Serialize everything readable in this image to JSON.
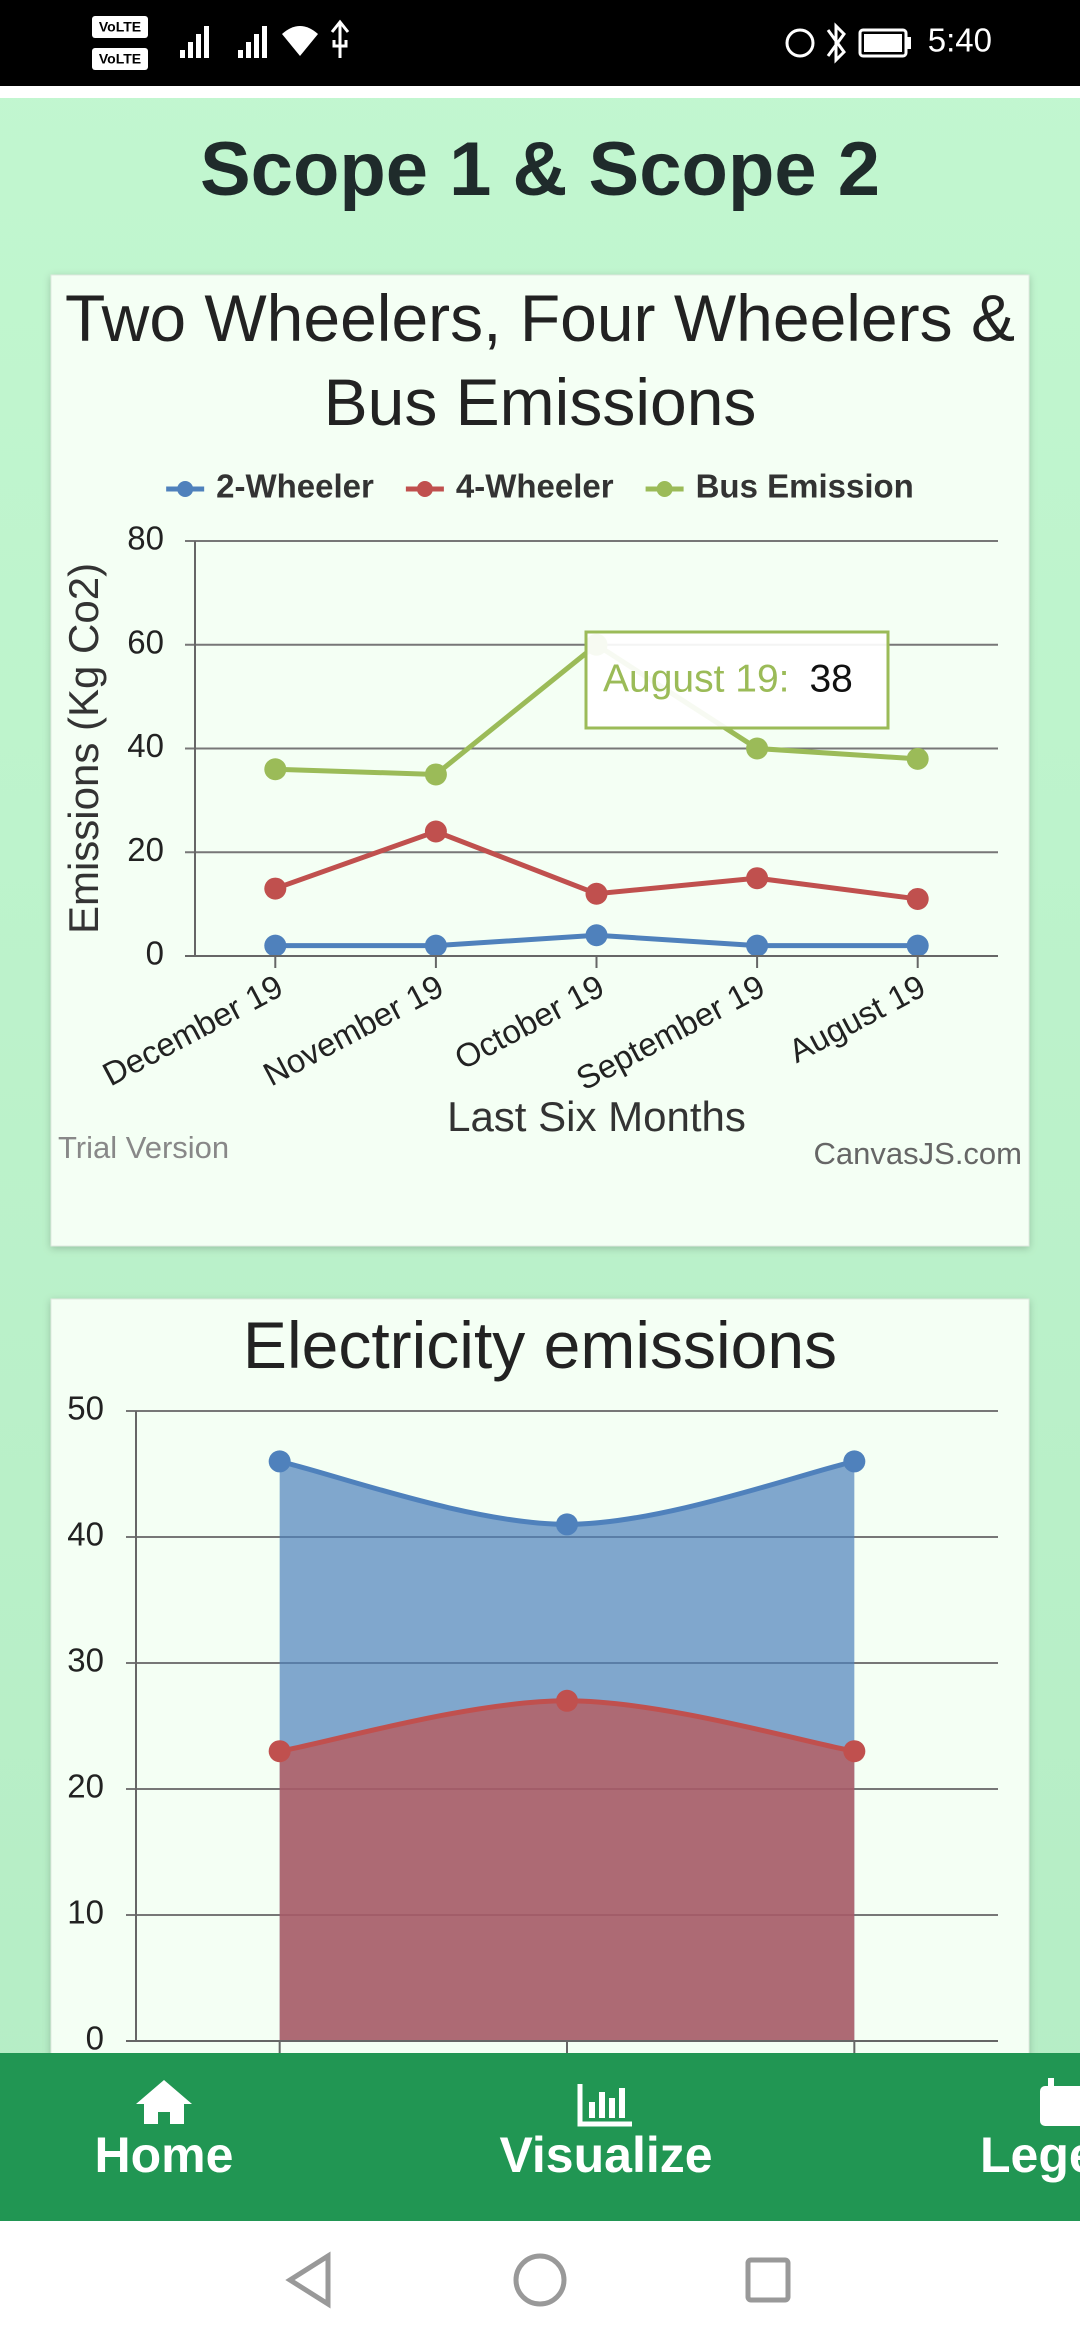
{
  "status_bar": {
    "network_labels": [
      "VoLTE",
      "VoLTE"
    ],
    "time": "5:40"
  },
  "page_title": "Scope 1 & Scope 2",
  "chart_data": [
    {
      "type": "line",
      "title": "Two Wheelers, Four Wheelers & Bus Emissions",
      "categories": [
        "December 19",
        "November 19",
        "October 19",
        "September 19",
        "August 19"
      ],
      "series": [
        {
          "name": "2-Wheeler",
          "color": "#4f81bc",
          "values": [
            2,
            2,
            4,
            2,
            2
          ]
        },
        {
          "name": "4-Wheeler",
          "color": "#c0504e",
          "values": [
            13,
            24,
            12,
            15,
            11
          ]
        },
        {
          "name": "Bus Emission",
          "color": "#9bbb58",
          "values": [
            36,
            35,
            60,
            40,
            38
          ]
        }
      ],
      "x_label": "Last Six Months",
      "y_label": "Emissions (Kg Co2)",
      "ylim": [
        0,
        80
      ],
      "yticks": [
        0,
        20,
        40,
        60,
        80
      ],
      "grid": true,
      "legend": "top",
      "tooltip": {
        "label": "August 19:",
        "value": 38,
        "color": "#9bbb58"
      },
      "watermark": "Trial Version",
      "credit": "CanvasJS.com"
    },
    {
      "type": "area",
      "title": "Electricity emissions",
      "categories": [
        null,
        null,
        null
      ],
      "series": [
        {
          "color": "#4f81bc",
          "values": [
            46,
            41,
            46
          ]
        },
        {
          "color": "#c0504e",
          "values": [
            23,
            27,
            23
          ]
        }
      ],
      "ylim": [
        0,
        50
      ],
      "yticks": [
        0,
        10,
        20,
        30,
        40,
        50
      ],
      "grid": true
    }
  ],
  "nav": {
    "items": [
      "Home",
      "Visualize",
      "Legend"
    ]
  }
}
